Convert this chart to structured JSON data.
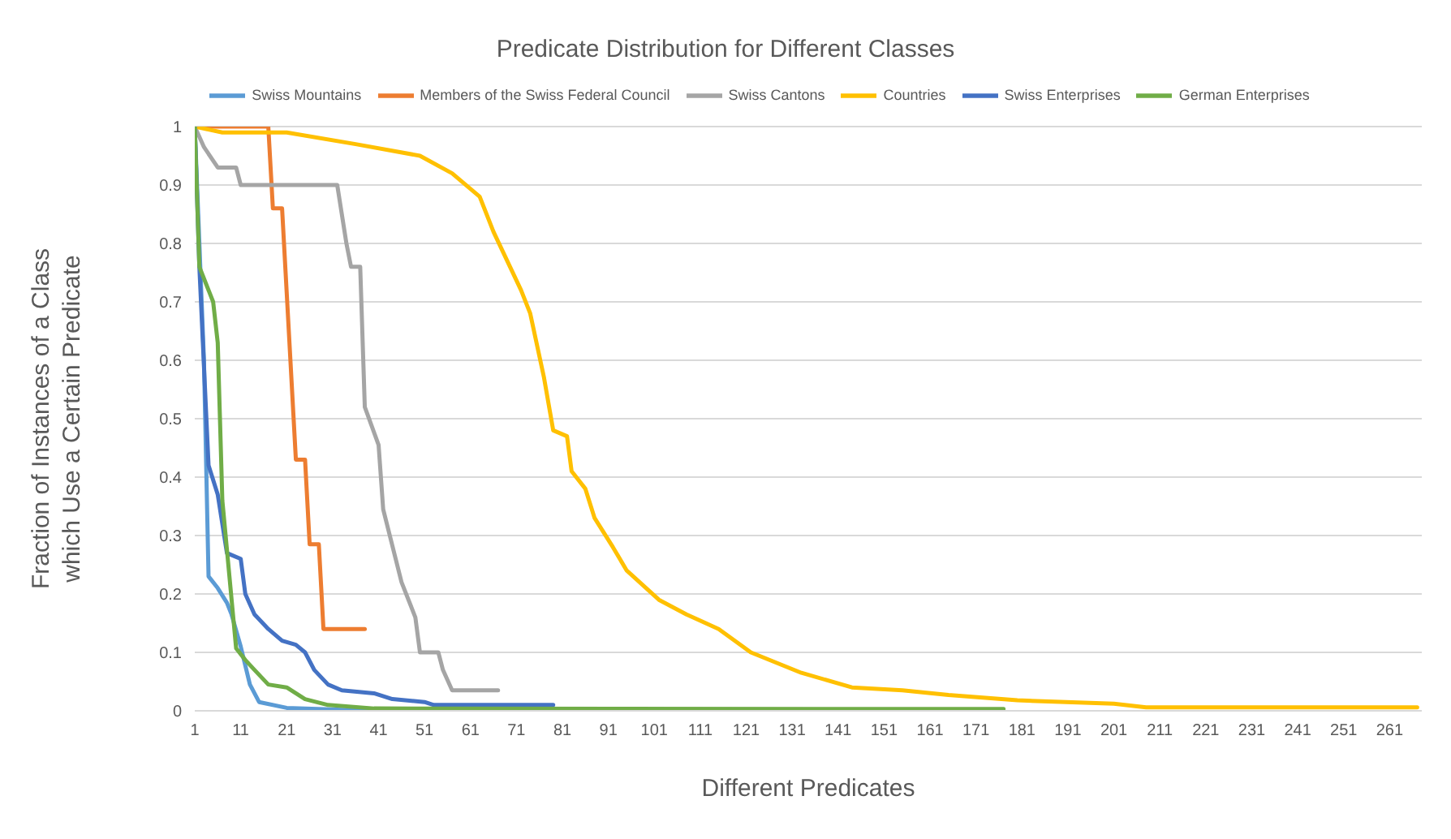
{
  "chart_data": {
    "type": "line",
    "title": "Predicate Distribution for Different Classes",
    "xlabel": "Different Predicates",
    "ylabel": "Fraction of Instances of a Class which Use a Certain Predicate",
    "xlim": [
      1,
      268
    ],
    "xticks": [
      1,
      11,
      21,
      31,
      41,
      51,
      61,
      71,
      81,
      91,
      101,
      111,
      121,
      131,
      141,
      151,
      161,
      171,
      181,
      191,
      201,
      211,
      221,
      231,
      241,
      251,
      261
    ],
    "ylim": [
      0,
      1
    ],
    "yticks": [
      0,
      0.1,
      0.2,
      0.3,
      0.4,
      0.5,
      0.6,
      0.7,
      0.8,
      0.9,
      1
    ],
    "grid": "y",
    "legend": "top",
    "marker": "none",
    "line_style": "solid",
    "series": [
      {
        "name": "Swiss Mountains",
        "color": "#5b9bd5",
        "x": [
          1,
          3,
          4,
          6,
          8,
          9,
          11,
          13,
          15,
          21,
          40
        ],
        "values": [
          1,
          0.6,
          0.23,
          0.21,
          0.185,
          0.165,
          0.11,
          0.045,
          0.015,
          0.005,
          0
        ]
      },
      {
        "name": "Members of the Swiss Federal Council",
        "color": "#ed7d31",
        "x": [
          1,
          17,
          18,
          20,
          23,
          25,
          26,
          28,
          29,
          38
        ],
        "values": [
          1,
          1,
          0.86,
          0.86,
          0.43,
          0.43,
          0.285,
          0.285,
          0.14,
          0.14
        ]
      },
      {
        "name": "Swiss Cantons",
        "color": "#a5a5a5",
        "x": [
          1,
          3,
          6,
          10,
          11,
          32,
          34,
          35,
          37,
          38,
          41,
          42,
          46,
          49,
          50,
          54,
          55,
          57,
          67
        ],
        "values": [
          1,
          0.965,
          0.93,
          0.93,
          0.9,
          0.9,
          0.8,
          0.76,
          0.76,
          0.52,
          0.455,
          0.345,
          0.22,
          0.16,
          0.1,
          0.1,
          0.07,
          0.035,
          0.035
        ]
      },
      {
        "name": "Countries",
        "color": "#ffc000",
        "x": [
          1,
          7,
          21,
          36,
          50,
          57,
          63,
          66,
          69,
          72,
          74,
          77,
          79,
          82,
          83,
          86,
          88,
          92,
          95,
          102,
          108,
          115,
          122,
          133,
          144,
          155,
          165,
          180,
          201,
          208,
          267
        ],
        "values": [
          1,
          0.99,
          0.99,
          0.97,
          0.95,
          0.92,
          0.88,
          0.82,
          0.77,
          0.72,
          0.68,
          0.57,
          0.48,
          0.47,
          0.41,
          0.38,
          0.33,
          0.28,
          0.24,
          0.19,
          0.165,
          0.14,
          0.1,
          0.065,
          0.04,
          0.035,
          0.027,
          0.018,
          0.012,
          0.006,
          0.006
        ]
      },
      {
        "name": "Swiss Enterprises",
        "color": "#4472c4",
        "x": [
          1,
          2,
          4,
          6,
          8,
          11,
          12,
          14,
          17,
          20,
          23,
          25,
          27,
          30,
          33,
          40,
          44,
          51,
          53,
          79
        ],
        "values": [
          1,
          0.76,
          0.42,
          0.37,
          0.27,
          0.26,
          0.2,
          0.165,
          0.14,
          0.12,
          0.113,
          0.1,
          0.07,
          0.045,
          0.035,
          0.03,
          0.02,
          0.015,
          0.01,
          0.01
        ]
      },
      {
        "name": "German Enterprises",
        "color": "#70ad47",
        "x": [
          1,
          2,
          5,
          6,
          7,
          10,
          12,
          14,
          17,
          21,
          25,
          30,
          40,
          177
        ],
        "values": [
          1,
          0.76,
          0.7,
          0.63,
          0.36,
          0.107,
          0.087,
          0.07,
          0.045,
          0.04,
          0.02,
          0.01,
          0.004,
          0.003
        ]
      }
    ]
  }
}
